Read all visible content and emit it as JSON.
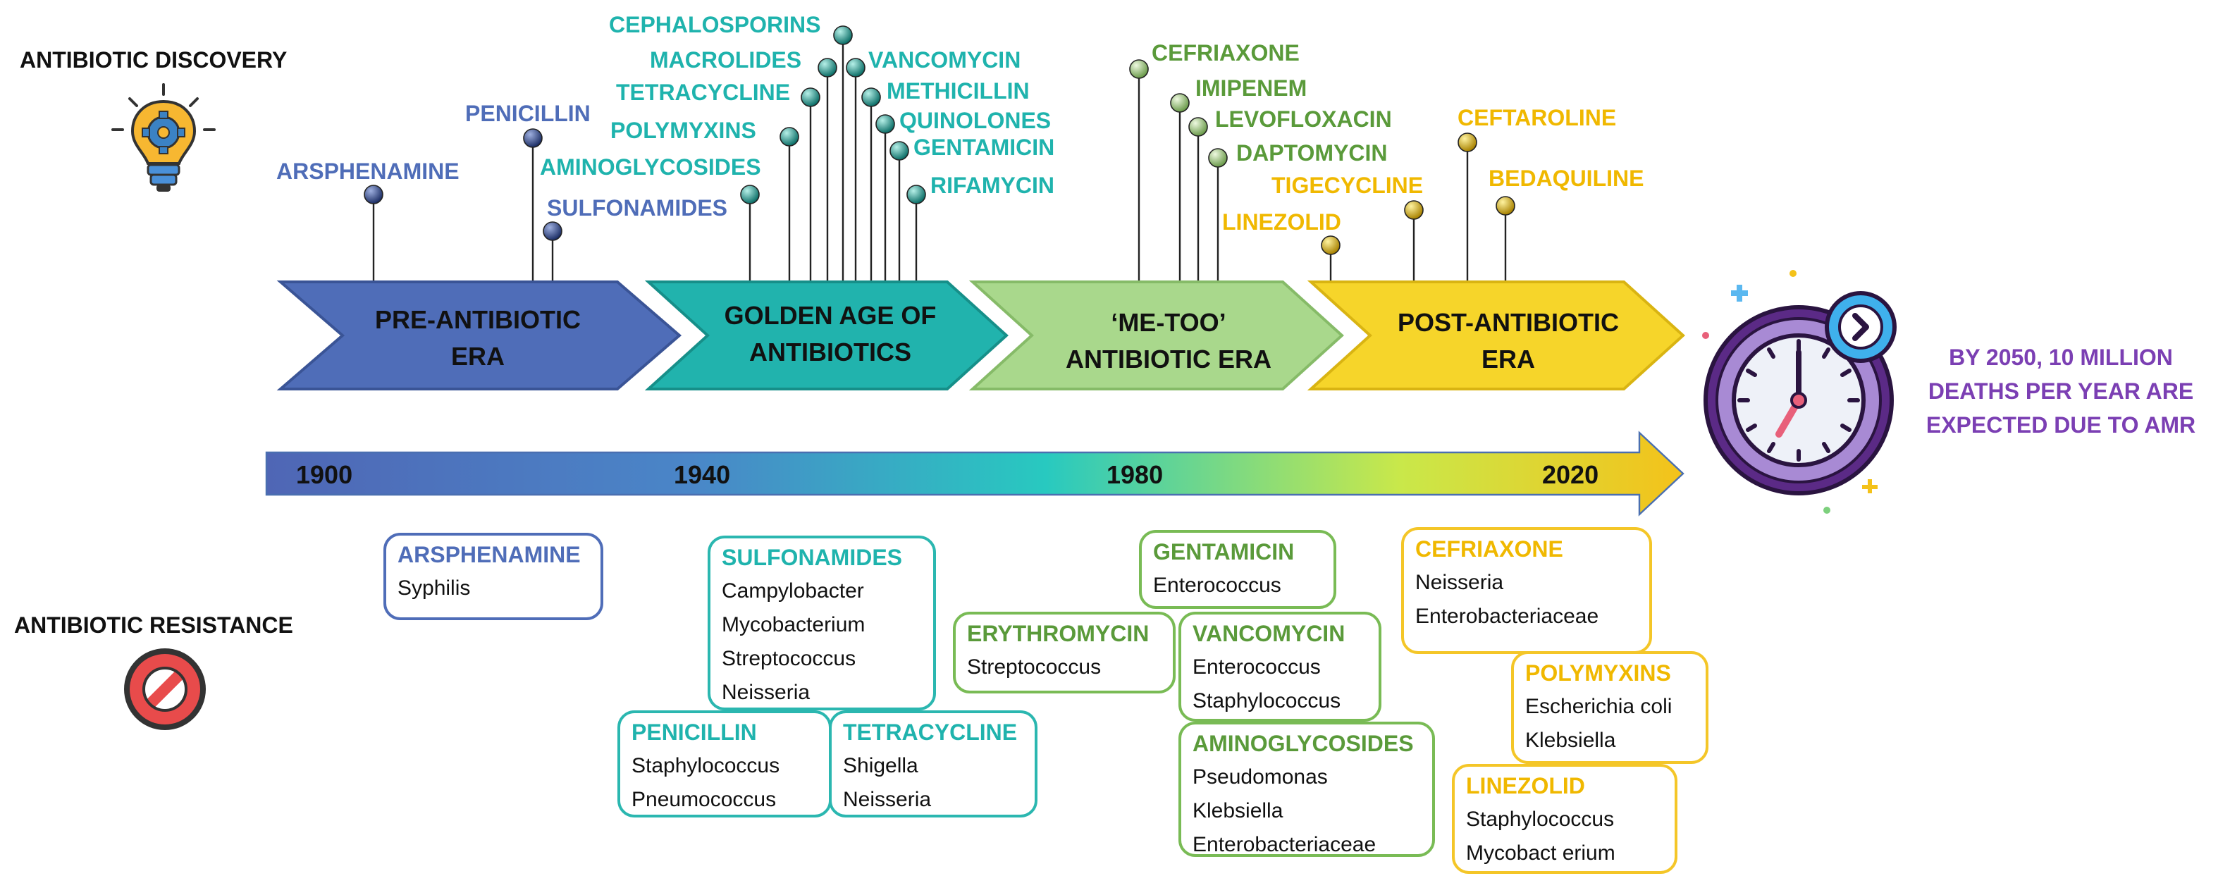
{
  "sections": {
    "discovery": "ANTIBIOTIC DISCOVERY",
    "resistance": "ANTIBIOTIC RESISTANCE"
  },
  "eras": [
    {
      "line1": "PRE-ANTIBIOTIC",
      "line2": "ERA",
      "color": "#4f6db8"
    },
    {
      "line1": "GOLDEN AGE OF",
      "line2": "ANTIBIOTICS",
      "color": "#21b3ad"
    },
    {
      "line1": "‘ME-TOO’",
      "line2": "ANTIBIOTIC ERA",
      "color": "#a9d88c"
    },
    {
      "line1": "POST-ANTIBIOTIC",
      "line2": "ERA",
      "color": "#f6d52a"
    }
  ],
  "years": [
    "1900",
    "1940",
    "1980",
    "2020"
  ],
  "discoveries": [
    {
      "name": "ARSPHENAMINE",
      "era": "pre"
    },
    {
      "name": "PENICILLIN",
      "era": "pre"
    },
    {
      "name": "SULFONAMIDES",
      "era": "pre"
    },
    {
      "name": "AMINOGLYCOSIDES",
      "era": "golden"
    },
    {
      "name": "POLYMYXINS",
      "era": "golden"
    },
    {
      "name": "TETRACYCLINE",
      "era": "golden"
    },
    {
      "name": "MACROLIDES",
      "era": "golden"
    },
    {
      "name": "CEPHALOSPORINS",
      "era": "golden"
    },
    {
      "name": "VANCOMYCIN",
      "era": "golden"
    },
    {
      "name": "METHICILLIN",
      "era": "golden"
    },
    {
      "name": "QUINOLONES",
      "era": "golden"
    },
    {
      "name": "GENTAMICIN",
      "era": "golden"
    },
    {
      "name": "RIFAMYCIN",
      "era": "golden"
    },
    {
      "name": "CEFRIAXONE",
      "era": "metoo"
    },
    {
      "name": "IMIPENEM",
      "era": "metoo"
    },
    {
      "name": "LEVOFLOXACIN",
      "era": "metoo"
    },
    {
      "name": "DAPTOMYCIN",
      "era": "metoo"
    },
    {
      "name": "LINEZOLID",
      "era": "post"
    },
    {
      "name": "TIGECYCLINE",
      "era": "post"
    },
    {
      "name": "CEFTAROLINE",
      "era": "post"
    },
    {
      "name": "BEDAQUILINE",
      "era": "post"
    }
  ],
  "resistance": [
    {
      "drug": "ARSPHENAMINE",
      "organisms": [
        "Syphilis"
      ],
      "era": "pre"
    },
    {
      "drug": "SULFONAMIDES",
      "organisms": [
        "Campylobacter",
        "Mycobacterium",
        "Streptococcus",
        "Neisseria"
      ],
      "era": "golden"
    },
    {
      "drug": "PENICILLIN",
      "organisms": [
        "Staphylococcus",
        "Pneumococcus"
      ],
      "era": "golden"
    },
    {
      "drug": "TETRACYCLINE",
      "organisms": [
        "Shigella",
        "Neisseria"
      ],
      "era": "golden"
    },
    {
      "drug": "GENTAMICIN",
      "organisms": [
        "Enterococcus"
      ],
      "era": "metoo"
    },
    {
      "drug": "ERYTHROMYCIN",
      "organisms": [
        "Streptococcus"
      ],
      "era": "metoo"
    },
    {
      "drug": "VANCOMYCIN",
      "organisms": [
        "Enterococcus",
        "Staphylococcus"
      ],
      "era": "metoo"
    },
    {
      "drug": "AMINOGLYCOSIDES",
      "organisms": [
        "Pseudomonas",
        "Klebsiella",
        "Enterobacteriaceae"
      ],
      "era": "metoo"
    },
    {
      "drug": "CEFRIAXONE",
      "organisms": [
        "Neisseria",
        "Enterobacteriaceae"
      ],
      "era": "post"
    },
    {
      "drug": "POLYMYXINS",
      "organisms": [
        "Escherichia coli",
        "Klebsiella"
      ],
      "era": "post"
    },
    {
      "drug": "LINEZOLID",
      "organisms": [
        "Staphylococcus",
        "Mycobact erium"
      ],
      "era": "post"
    }
  ],
  "amr_text": "BY 2050, 10 MILLION DEATHS PER YEAR ARE EXPECTED DUE TO AMR",
  "colors": {
    "pre": "#4f6db8",
    "golden": "#1fb3ad",
    "metoo": "#5a9a3a",
    "post": "#f0b800",
    "amr": "#7b3fb3"
  },
  "icons": [
    "lightbulb-gear-icon",
    "prohibition-icon",
    "clock-icon",
    "chevron-right-icon"
  ]
}
